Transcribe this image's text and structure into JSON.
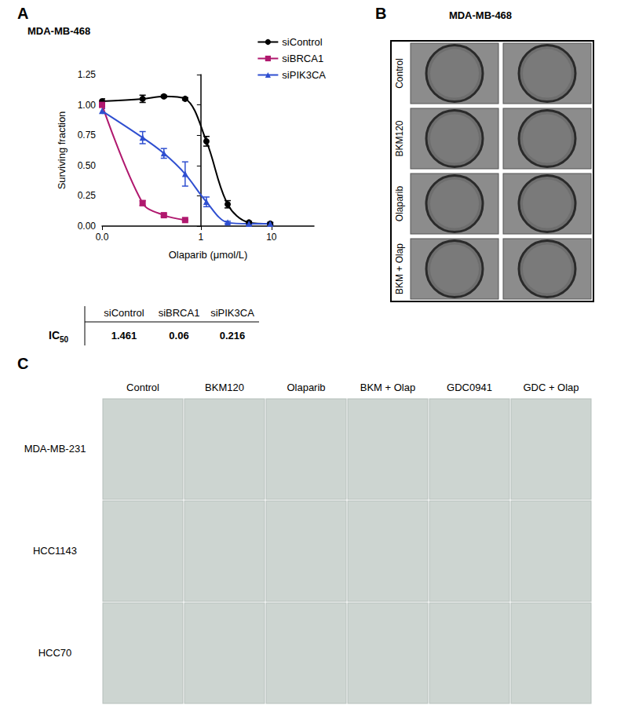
{
  "panel_labels": [
    "A",
    "B",
    "C"
  ],
  "chart_data": {
    "type": "line",
    "title": "MDA-MB-468",
    "x_label": "Olaparib (μmol/L)",
    "y_label": "Surviving fraction",
    "log": "x",
    "xlim": [
      0.04,
      40
    ],
    "xticks": [
      {
        "value": 0.04,
        "label": "0.0"
      },
      1,
      10
    ],
    "ylim": [
      0,
      1.25
    ],
    "yticks": [
      {
        "value": 0,
        "label": "0.00"
      },
      0.25,
      {
        "value": 0.5,
        "label": "0.50"
      },
      0.75,
      {
        "value": 1,
        "label": "1.00"
      },
      1.25
    ],
    "grid": false,
    "legend": "upper right",
    "series": [
      {
        "name": "siControl",
        "color": "#000000",
        "marker": "circle",
        "x": [
          0.04,
          0.15,
          0.3,
          0.6,
          1.2,
          2.4,
          4.8,
          9.6
        ],
        "values": [
          1.03,
          1.05,
          1.07,
          1.05,
          0.7,
          0.18,
          0.03,
          0.02
        ],
        "errors": [
          0.02,
          0.03,
          0.01,
          0.01,
          0.04,
          0.03,
          0.01,
          0.01
        ]
      },
      {
        "name": "siBRCA1",
        "color": "#b0186e",
        "marker": "square",
        "x": [
          0.04,
          0.15,
          0.3,
          0.6
        ],
        "values": [
          1.0,
          0.19,
          0.09,
          0.05
        ],
        "errors": [
          0.02,
          0.02,
          0.01,
          0.005
        ]
      },
      {
        "name": "siPIK3CA",
        "color": "#2f4fd0",
        "marker": "triangle",
        "x": [
          0.04,
          0.15,
          0.3,
          0.6,
          1.2,
          2.4,
          4.8,
          9.6
        ],
        "values": [
          0.95,
          0.73,
          0.6,
          0.43,
          0.2,
          0.03,
          0.02,
          0.02
        ],
        "errors": [
          0.02,
          0.05,
          0.04,
          0.1,
          0.04,
          0.01,
          0.01,
          0.01
        ]
      }
    ]
  },
  "ic50_table": {
    "row_label": "IC50",
    "columns": [
      "siControl",
      "siBRCA1",
      "siPIK3CA"
    ],
    "values": [
      1.461,
      0.06,
      0.216
    ]
  },
  "panel_b": {
    "title": "MDA-MB-468",
    "rows": [
      "Control",
      "BKM120",
      "Olaparib",
      "BKM + Olap"
    ]
  },
  "panel_c": {
    "columns": [
      "Control",
      "BKM120",
      "Olaparib",
      "BKM + Olap",
      "GDC0941",
      "GDC + Olap"
    ],
    "rows": [
      "MDA-MB-231",
      "HCC1143",
      "HCC70"
    ]
  }
}
